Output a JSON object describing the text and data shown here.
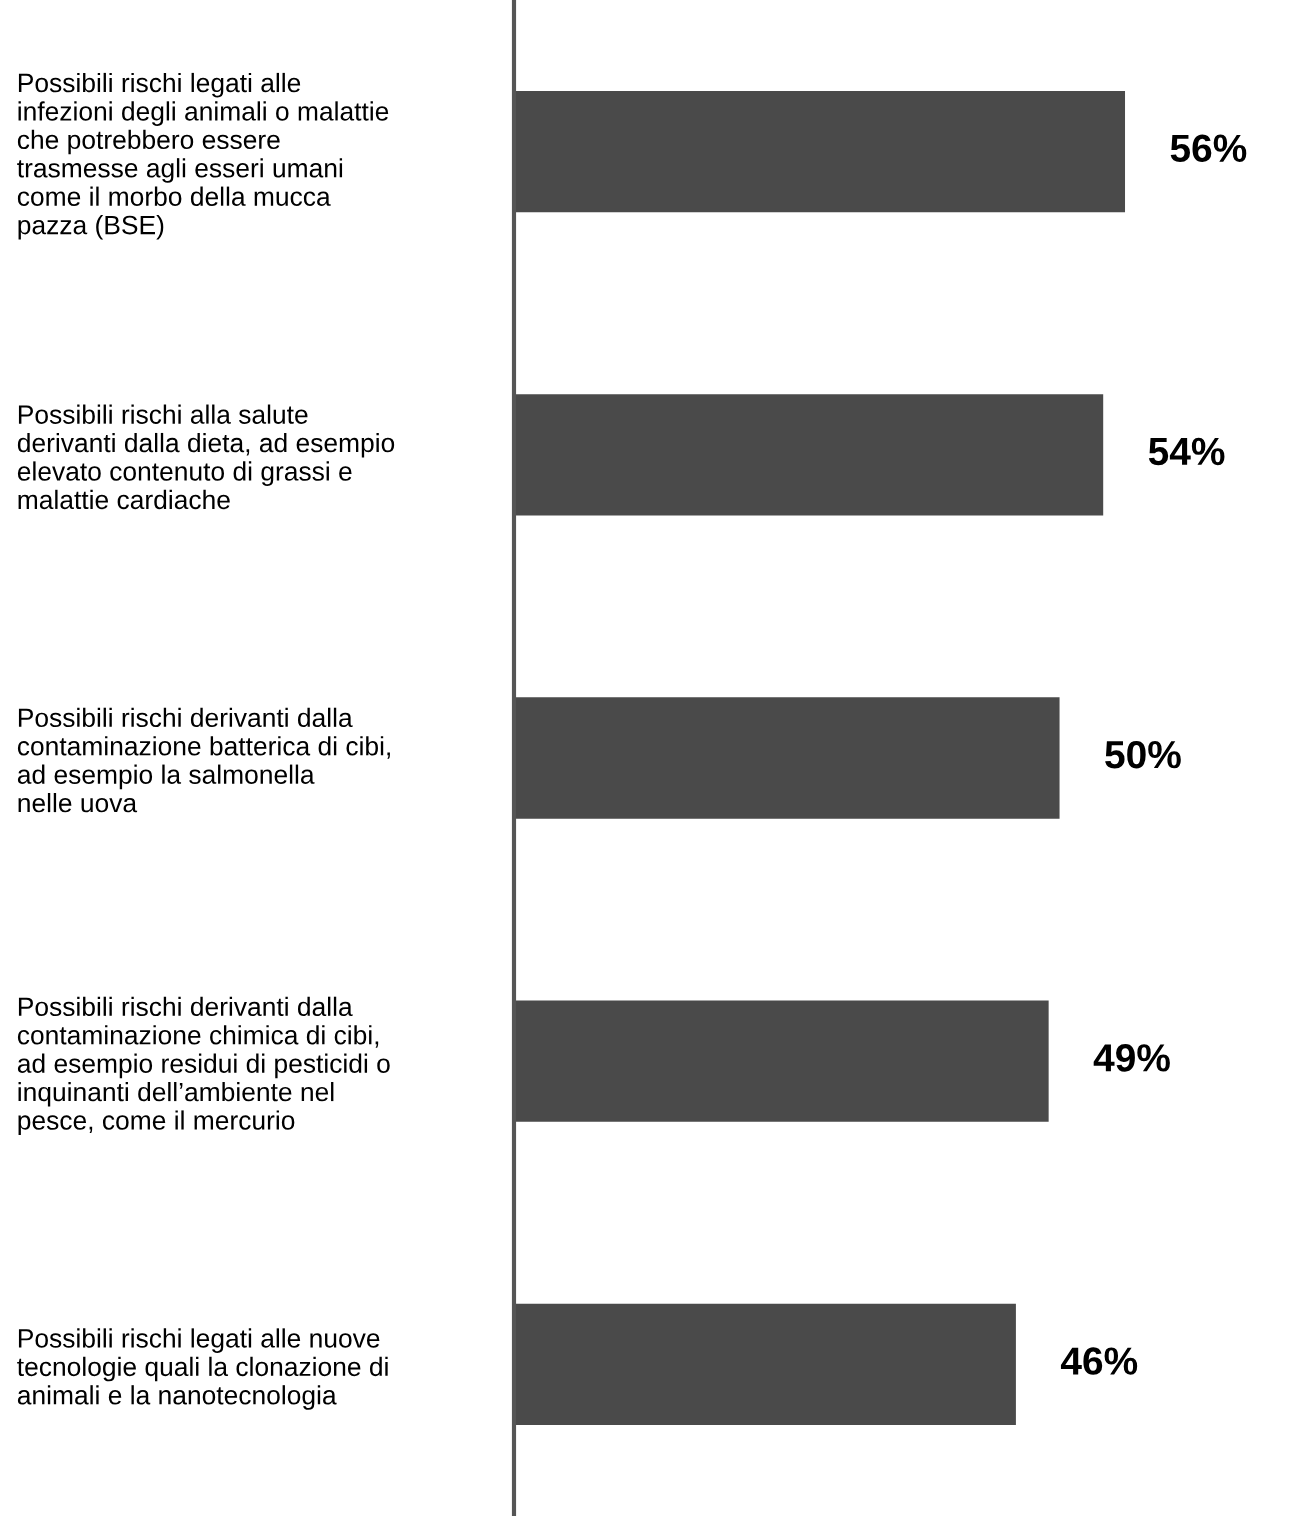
{
  "chart_data": {
    "type": "bar",
    "orientation": "horizontal",
    "categories": [
      "Possibili rischi legati alle\ninfezioni degli animali o malattie\nche potrebbero essere\ntrasmesse agli esseri umani\ncome il morbo della mucca\npazza (BSE)",
      "Possibili rischi alla salute\nderivanti dalla dieta, ad esempio\nelevato contenuto di grassi e\nmalattie cardiache",
      "Possibili rischi derivanti dalla\ncontaminazione batterica di cibi,\nad esempio la salmonella\nnelle uova",
      "Possibili rischi derivanti dalla\ncontaminazione chimica di cibi,\nad esempio residui di pesticidi o\ninquinanti dell’ambiente nel\npesce, come il mercurio",
      "Possibili rischi legati alle nuove\ntecnologie quali la clonazione di\nanimali e la nanotecnologia"
    ],
    "values": [
      56,
      54,
      50,
      49,
      46
    ],
    "value_labels": [
      "56%",
      "54%",
      "50%",
      "49%",
      "46%"
    ],
    "color": "#4a4a4a",
    "tick_labels": "y",
    "grid": false,
    "legend": false
  }
}
